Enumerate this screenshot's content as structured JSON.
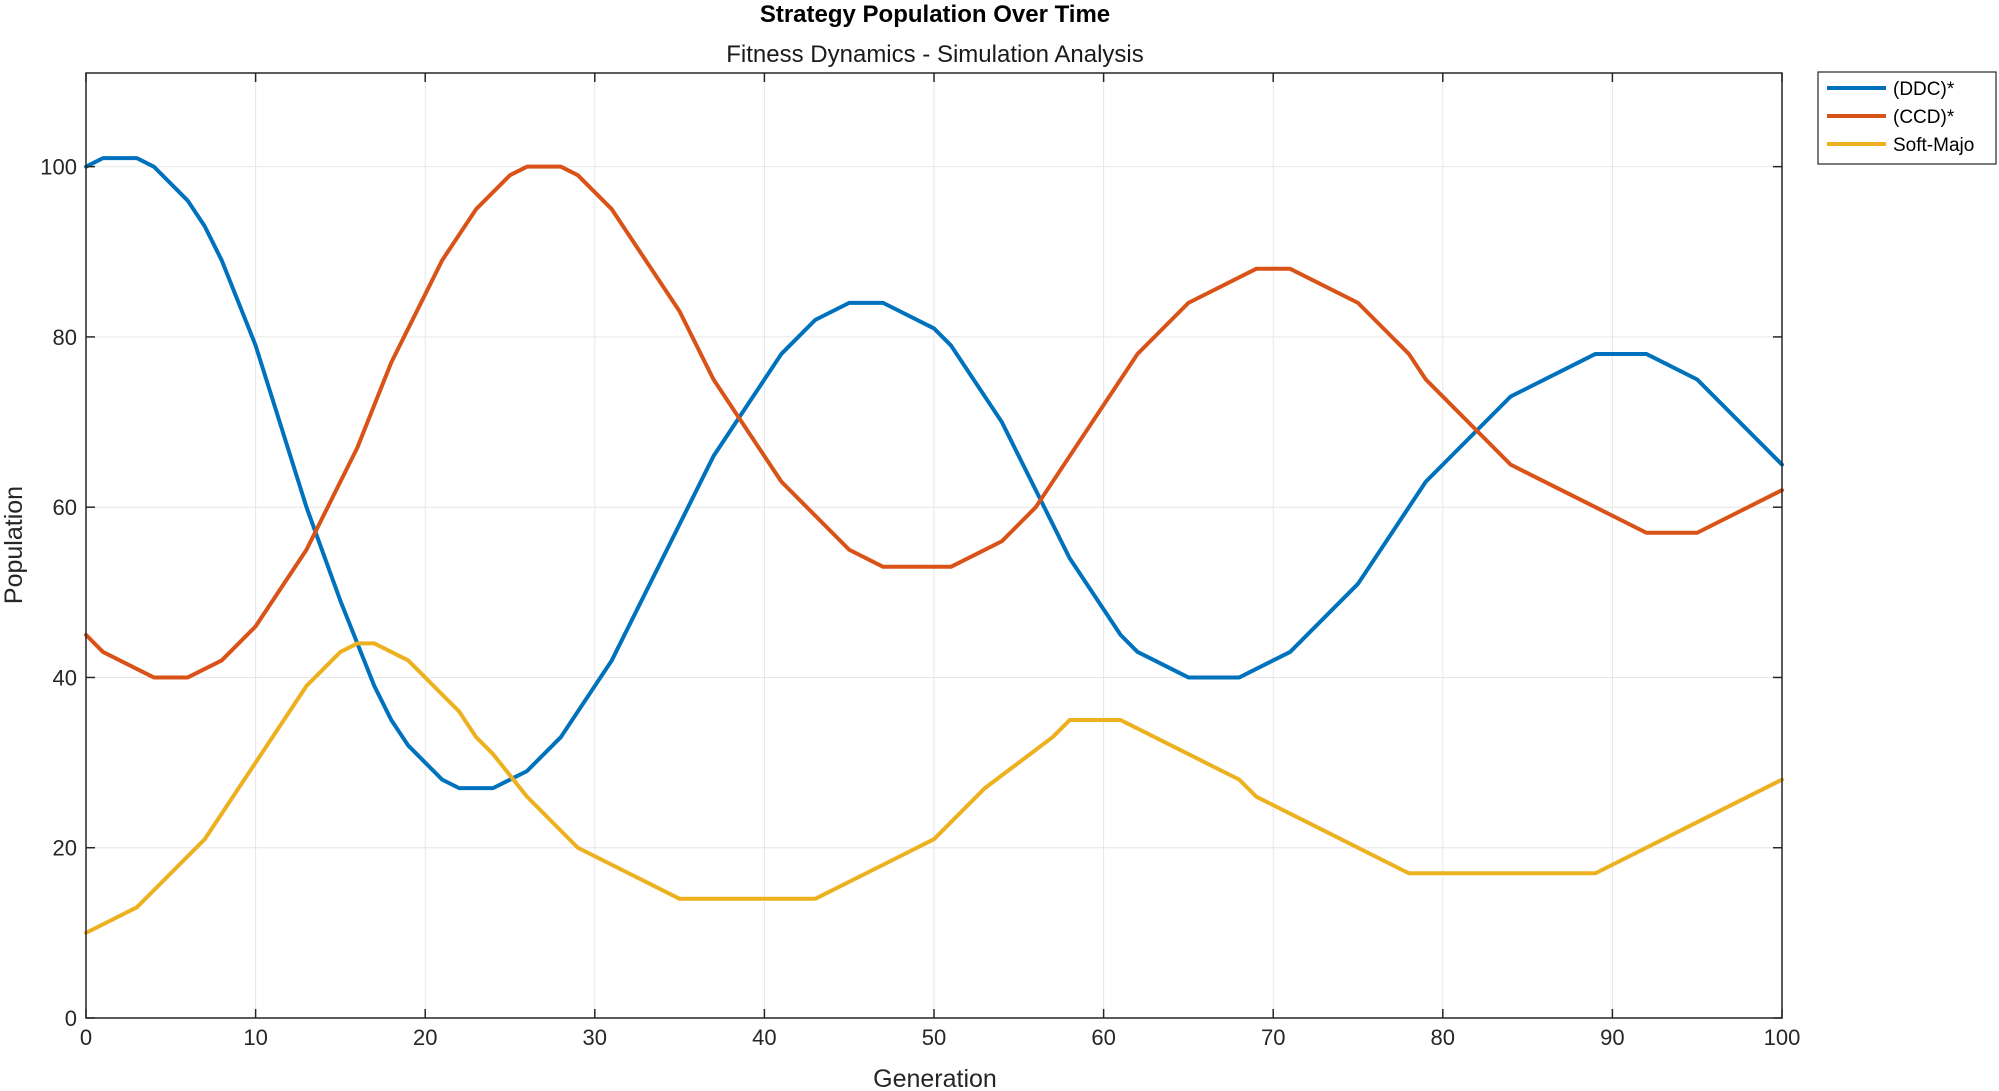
{
  "chart_data": {
    "type": "line",
    "title": "Strategy Population Over Time",
    "subtitle": "Fitness Dynamics - Simulation Analysis",
    "xlabel": "Generation",
    "ylabel": "Population",
    "xlim": [
      0,
      100
    ],
    "ylim": [
      0,
      111
    ],
    "xticks": [
      0,
      10,
      20,
      30,
      40,
      50,
      60,
      70,
      80,
      90,
      100
    ],
    "yticks": [
      0,
      20,
      40,
      60,
      80,
      100
    ],
    "grid": true,
    "legend_position": "outside-top-right",
    "series": [
      {
        "name": "(DDC)*",
        "color": "#0072BD",
        "x": [
          0,
          1,
          3,
          4,
          6,
          7,
          8,
          10,
          13,
          15,
          17,
          18,
          19,
          21,
          22,
          24,
          26,
          28,
          31,
          34,
          37,
          39,
          41,
          43,
          45,
          47,
          50,
          51,
          54,
          56,
          58,
          61,
          62,
          65,
          68,
          71,
          75,
          79,
          84,
          89,
          92,
          95,
          100
        ],
        "y": [
          100,
          101,
          101,
          100,
          96,
          93,
          89,
          79,
          60,
          49,
          39,
          35,
          32,
          28,
          27,
          27,
          29,
          33,
          42,
          54,
          66,
          72,
          78,
          82,
          84,
          84,
          81,
          79,
          70,
          62,
          54,
          45,
          43,
          40,
          40,
          43,
          51,
          63,
          73,
          78,
          78,
          75,
          65
        ]
      },
      {
        "name": "(CCD)*",
        "color": "#D95319",
        "x": [
          0,
          1,
          4,
          6,
          8,
          10,
          13,
          16,
          18,
          21,
          23,
          25,
          26,
          28,
          29,
          31,
          35,
          37,
          41,
          45,
          47,
          51,
          54,
          56,
          59,
          62,
          65,
          69,
          71,
          75,
          78,
          79,
          84,
          89,
          92,
          95,
          100
        ],
        "y": [
          45,
          43,
          40,
          40,
          42,
          46,
          55,
          67,
          77,
          89,
          95,
          99,
          100,
          100,
          99,
          95,
          83,
          75,
          63,
          55,
          53,
          53,
          56,
          60,
          69,
          78,
          84,
          88,
          88,
          84,
          78,
          75,
          65,
          60,
          57,
          57,
          62
        ]
      },
      {
        "name": "Soft-Majo",
        "color": "#EDB120",
        "x": [
          0,
          3,
          7,
          10,
          13,
          15,
          16,
          17,
          19,
          22,
          23,
          24,
          26,
          29,
          31,
          35,
          38,
          43,
          50,
          53,
          57,
          58,
          61,
          68,
          69,
          73,
          78,
          84,
          89,
          92,
          95,
          100
        ],
        "y": [
          10,
          13,
          21,
          30,
          39,
          43,
          44,
          44,
          42,
          36,
          33,
          31,
          26,
          20,
          18,
          14,
          14,
          14,
          21,
          27,
          33,
          35,
          35,
          28,
          26,
          22,
          17,
          17,
          17,
          20,
          23,
          28
        ]
      }
    ]
  }
}
